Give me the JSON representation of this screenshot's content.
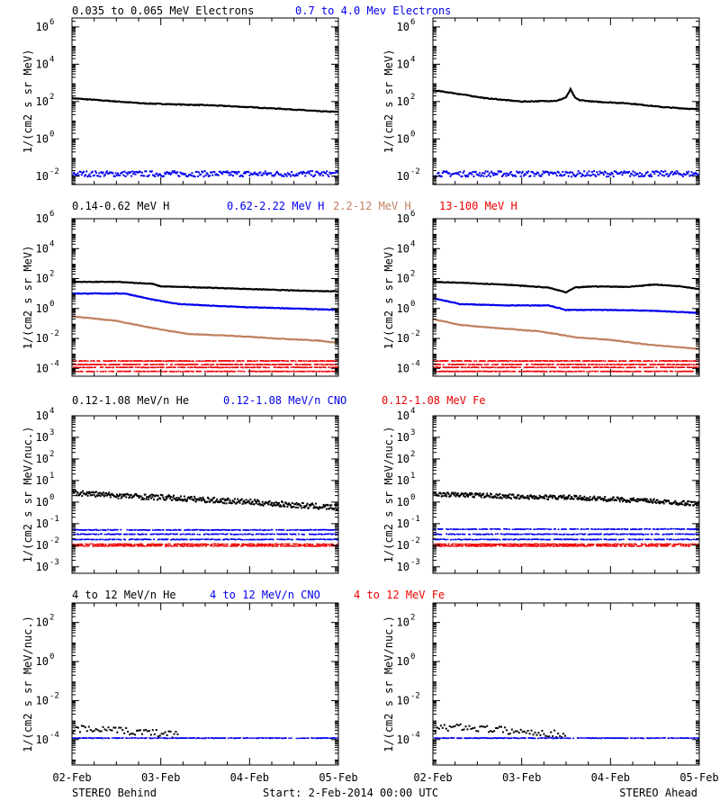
{
  "colors": {
    "black": "#000000",
    "blue": "#0000ee",
    "tan": "#c08060",
    "red": "#ee0000"
  },
  "footer": {
    "left": "STEREO Behind",
    "start": "Start:  2-Feb-2014 00:00 UTC",
    "right": "STEREO Ahead"
  },
  "x_ticks": [
    "02-Feb",
    "03-Feb",
    "04-Feb",
    "05-Feb"
  ],
  "chart_data": [
    {
      "type": "scatter",
      "row": 0,
      "panel": "behind",
      "y_scale": "log",
      "ylabel": "1/(cm2 s sr MeV)",
      "ylim": [
        0.0036,
        3000000
      ],
      "yticks": [
        {
          "exp": "-2",
          "v": 0.01
        },
        {
          "exp": "0",
          "v": 1
        },
        {
          "exp": "2",
          "v": 100
        },
        {
          "exp": "4",
          "v": 10000
        },
        {
          "exp": "6",
          "v": 1000000
        }
      ],
      "series": [
        {
          "name": "0.035 to 0.065 MeV Electrons",
          "color": "black",
          "style": "line",
          "x": [
            0,
            0.4,
            0.8,
            1.2,
            1.6,
            2.0,
            2.4,
            2.8,
            3.0
          ],
          "y": [
            150,
            110,
            80,
            70,
            62,
            50,
            40,
            30,
            28
          ]
        },
        {
          "name": "0.7 to 4.0 Mev Electrons",
          "color": "blue",
          "style": "noise",
          "level": 0.015,
          "spread": 0.3,
          "x": [
            0,
            3
          ],
          "y": [
            0.015,
            0.015
          ]
        }
      ]
    },
    {
      "type": "scatter",
      "row": 0,
      "panel": "ahead",
      "y_scale": "log",
      "ylabel": "1/(cm2 s sr MeV)",
      "ylim": [
        0.0036,
        3000000
      ],
      "yticks": [
        {
          "exp": "-2",
          "v": 0.01
        },
        {
          "exp": "0",
          "v": 1
        },
        {
          "exp": "2",
          "v": 100
        },
        {
          "exp": "4",
          "v": 10000
        },
        {
          "exp": "6",
          "v": 1000000
        }
      ],
      "series": [
        {
          "name": "",
          "color": "black",
          "style": "line",
          "x": [
            0,
            0.2,
            0.6,
            1.0,
            1.4,
            1.5,
            1.55,
            1.6,
            1.65,
            1.8,
            2.2,
            2.6,
            3.0
          ],
          "y": [
            400,
            300,
            150,
            100,
            110,
            170,
            450,
            160,
            120,
            100,
            80,
            50,
            38
          ]
        },
        {
          "name": "",
          "color": "blue",
          "style": "noise",
          "level": 0.015,
          "spread": 0.3,
          "x": [
            0,
            3
          ],
          "y": [
            0.015,
            0.015
          ]
        }
      ]
    },
    {
      "type": "scatter",
      "row": 1,
      "panel": "behind",
      "y_scale": "log",
      "ylabel": "1/(cm2 s sr MeV)",
      "ylim": [
        3e-05,
        1000000
      ],
      "yticks": [
        {
          "exp": "-4",
          "v": 0.0001
        },
        {
          "exp": "-2",
          "v": 0.01
        },
        {
          "exp": "0",
          "v": 1
        },
        {
          "exp": "2",
          "v": 100
        },
        {
          "exp": "4",
          "v": 10000
        },
        {
          "exp": "6",
          "v": 1000000
        }
      ],
      "series": [
        {
          "name": "0.14-0.62 MeV H",
          "color": "black",
          "style": "line",
          "x": [
            0,
            0.5,
            0.9,
            1.0,
            1.5,
            2.0,
            2.5,
            3.0
          ],
          "y": [
            60,
            60,
            45,
            30,
            25,
            20,
            16,
            14
          ]
        },
        {
          "name": "0.62-2.22 MeV H",
          "color": "blue",
          "style": "line",
          "x": [
            0,
            0.6,
            0.9,
            1.2,
            1.6,
            2.0,
            2.5,
            3.0
          ],
          "y": [
            10,
            10,
            4,
            2,
            1.5,
            1.2,
            1,
            0.8
          ]
        },
        {
          "name": "2.2-12 MeV H",
          "color": "tan",
          "style": "line",
          "x": [
            0,
            0.5,
            0.9,
            1.3,
            1.8,
            2.3,
            2.8,
            3.0
          ],
          "y": [
            0.3,
            0.15,
            0.05,
            0.02,
            0.015,
            0.01,
            0.007,
            0.005
          ]
        },
        {
          "name": "13-100 MeV H",
          "color": "red",
          "style": "bands",
          "levels": [
            0.00035,
            0.0002,
            0.00013,
            7e-05
          ],
          "x": [
            0,
            3
          ],
          "y": [
            0.00035,
            0.00035
          ]
        }
      ]
    },
    {
      "type": "scatter",
      "row": 1,
      "panel": "ahead",
      "y_scale": "log",
      "ylabel": "1/(cm2 s sr MeV)",
      "ylim": [
        3e-05,
        1000000
      ],
      "yticks": [
        {
          "exp": "-4",
          "v": 0.0001
        },
        {
          "exp": "-2",
          "v": 0.01
        },
        {
          "exp": "0",
          "v": 1
        },
        {
          "exp": "2",
          "v": 100
        },
        {
          "exp": "4",
          "v": 10000
        },
        {
          "exp": "6",
          "v": 1000000
        }
      ],
      "series": [
        {
          "name": "",
          "color": "black",
          "style": "line",
          "x": [
            0,
            0.4,
            0.8,
            1.3,
            1.5,
            1.6,
            1.8,
            2.2,
            2.5,
            2.8,
            3.0
          ],
          "y": [
            60,
            50,
            40,
            25,
            12,
            25,
            30,
            28,
            40,
            30,
            20
          ]
        },
        {
          "name": "",
          "color": "blue",
          "style": "line",
          "x": [
            0,
            0.3,
            0.8,
            1.3,
            1.5,
            2.0,
            2.5,
            3.0
          ],
          "y": [
            5,
            2,
            1.6,
            1.6,
            0.8,
            0.8,
            0.7,
            0.5
          ]
        },
        {
          "name": "",
          "color": "tan",
          "style": "line",
          "x": [
            0,
            0.3,
            0.7,
            1.2,
            1.6,
            2.0,
            2.4,
            2.8,
            3.0
          ],
          "y": [
            0.2,
            0.08,
            0.05,
            0.03,
            0.012,
            0.008,
            0.004,
            0.0025,
            0.002
          ]
        },
        {
          "name": "",
          "color": "red",
          "style": "bands",
          "levels": [
            0.00035,
            0.0002,
            0.00013,
            7e-05
          ],
          "x": [
            0,
            3
          ],
          "y": [
            0.00035,
            0.00035
          ]
        }
      ]
    },
    {
      "type": "scatter",
      "row": 2,
      "panel": "behind",
      "y_scale": "log",
      "ylabel": "1/(cm2 s sr MeV/nuc.)",
      "ylim": [
        0.0005,
        10000
      ],
      "yticks": [
        {
          "exp": "-3",
          "v": 0.001
        },
        {
          "exp": "-2",
          "v": 0.01
        },
        {
          "exp": "-1",
          "v": 0.1
        },
        {
          "exp": "0",
          "v": 1
        },
        {
          "exp": "1",
          "v": 10
        },
        {
          "exp": "2",
          "v": 100
        },
        {
          "exp": "3",
          "v": 1000
        },
        {
          "exp": "4",
          "v": 10000
        }
      ],
      "series": [
        {
          "name": "0.12-1.08 MeV/n He",
          "color": "black",
          "style": "scatterline",
          "spread": 0.25,
          "x": [
            0,
            0.5,
            1.0,
            1.5,
            2.0,
            2.5,
            3.0
          ],
          "y": [
            3,
            2.2,
            1.8,
            1.4,
            1.1,
            0.8,
            0.6
          ]
        },
        {
          "name": "0.12-1.08 MeV/n CNO",
          "color": "blue",
          "style": "bands",
          "levels": [
            0.055,
            0.035,
            0.02
          ],
          "x": [
            0,
            3
          ],
          "y": [
            0.055,
            0.055
          ]
        },
        {
          "name": "0.12-1.08 MeV Fe",
          "color": "red",
          "style": "bands",
          "levels": [
            0.012,
            0.01
          ],
          "x": [
            0,
            3
          ],
          "y": [
            0.012,
            0.012
          ]
        }
      ]
    },
    {
      "type": "scatter",
      "row": 2,
      "panel": "ahead",
      "y_scale": "log",
      "ylabel": "1/(cm2 s sr MeV/nuc.)",
      "ylim": [
        0.0005,
        10000
      ],
      "yticks": [
        {
          "exp": "-3",
          "v": 0.001
        },
        {
          "exp": "-2",
          "v": 0.01
        },
        {
          "exp": "-1",
          "v": 0.1
        },
        {
          "exp": "0",
          "v": 1
        },
        {
          "exp": "1",
          "v": 10
        },
        {
          "exp": "2",
          "v": 100
        },
        {
          "exp": "3",
          "v": 1000
        },
        {
          "exp": "4",
          "v": 10000
        }
      ],
      "series": [
        {
          "name": "",
          "color": "black",
          "style": "scatterline",
          "spread": 0.2,
          "x": [
            0,
            0.5,
            1.0,
            1.5,
            2.0,
            2.5,
            3.0
          ],
          "y": [
            2.5,
            2.3,
            1.9,
            1.8,
            1.5,
            1.2,
            0.9
          ]
        },
        {
          "name": "",
          "color": "blue",
          "style": "bands",
          "levels": [
            0.06,
            0.035,
            0.02
          ],
          "x": [
            0,
            3
          ],
          "y": [
            0.06,
            0.06
          ]
        },
        {
          "name": "",
          "color": "red",
          "style": "bands",
          "levels": [
            0.012,
            0.01
          ],
          "x": [
            0,
            3
          ],
          "y": [
            0.012,
            0.012
          ]
        }
      ]
    },
    {
      "type": "scatter",
      "row": 3,
      "panel": "behind",
      "y_scale": "log",
      "ylabel": "1/(cm2 s sr MeV/nuc.)",
      "ylim": [
        5e-06,
        1000
      ],
      "yticks": [
        {
          "exp": "-4",
          "v": 0.0001
        },
        {
          "exp": "-2",
          "v": 0.01
        },
        {
          "exp": "0",
          "v": 1
        },
        {
          "exp": "2",
          "v": 100
        }
      ],
      "series": [
        {
          "name": "4 to 12 MeV/n He",
          "color": "black",
          "style": "sparse",
          "x": [
            0,
            0.3,
            0.6,
            0.9,
            1.2
          ],
          "y": [
            0.0004,
            0.00035,
            0.0003,
            0.00025,
            0.0002
          ]
        },
        {
          "name": "4 to 12 MeV/n CNO",
          "color": "blue",
          "style": "bands",
          "levels": [
            0.00013
          ],
          "x": [
            0,
            3
          ],
          "y": [
            0.00013,
            0.00013
          ]
        },
        {
          "name": "4 to 12 MeV Fe",
          "color": "red",
          "style": "none",
          "x": [],
          "y": []
        }
      ]
    },
    {
      "type": "scatter",
      "row": 3,
      "panel": "ahead",
      "y_scale": "log",
      "ylabel": "1/(cm2 s sr MeV/nuc.)",
      "ylim": [
        5e-06,
        1000
      ],
      "yticks": [
        {
          "exp": "-4",
          "v": 0.0001
        },
        {
          "exp": "-2",
          "v": 0.01
        },
        {
          "exp": "0",
          "v": 1
        },
        {
          "exp": "2",
          "v": 100
        }
      ],
      "series": [
        {
          "name": "",
          "color": "black",
          "style": "sparse",
          "x": [
            0,
            0.3,
            0.6,
            0.9,
            1.2,
            1.5
          ],
          "y": [
            0.0004,
            0.0005,
            0.0004,
            0.0003,
            0.00025,
            0.0002
          ]
        },
        {
          "name": "",
          "color": "blue",
          "style": "bands",
          "levels": [
            0.00013
          ],
          "x": [
            0,
            3
          ],
          "y": [
            0.00013,
            0.00013
          ]
        },
        {
          "name": "",
          "color": "red",
          "style": "none",
          "x": [],
          "y": []
        }
      ]
    }
  ]
}
